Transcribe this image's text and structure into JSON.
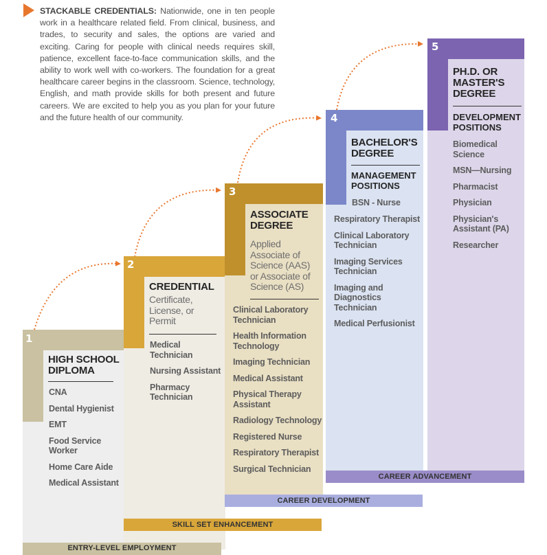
{
  "intro": {
    "heading": "STACKABLE CREDENTIALS:",
    "body": "Nationwide, one in ten people work in a healthcare related field. From clinical, business, and trades, to security and sales, the options are varied and exciting. Caring for people with clinical needs requires skill, patience, excellent face-to-face communication skills, and the ability to work well with co-workers. The foundation for a great healthcare career begins in the classroom. Science, technology, English, and math provide skills for both present and future careers. We are excited to help you as you plan for your future and the future health of our community."
  },
  "colors": {
    "step1": "#c9c1a1",
    "step2": "#d9a63a",
    "step3": "#c0902c",
    "step4": "#7b87c9",
    "step5": "#7c64b0",
    "arrow": "#e8772e"
  },
  "steps": [
    {
      "number": "1",
      "title": "HIGH SCHOOL DIPLOMA",
      "items": [
        "CNA",
        "Dental Hygienist",
        "EMT",
        "Food Service Worker",
        "Home Care Aide",
        "Medical Assistant"
      ],
      "band": "ENTRY-LEVEL EMPLOYMENT"
    },
    {
      "number": "2",
      "title": "CREDENTIAL",
      "subtitle": "Certificate, License, or Permit",
      "items": [
        "Medical Technician",
        "Nursing Assistant",
        "Pharmacy Technician"
      ],
      "band": "SKILL SET ENHANCEMENT"
    },
    {
      "number": "3",
      "title": "ASSOCIATE DEGREE",
      "subtitle": "Applied Associate of Science (AAS) or Associate of Science (AS)",
      "items": [
        "Clinical Laboratory Technician",
        "Health Information Technology",
        "Imaging Technician",
        "Medical Assistant",
        "Physical Therapy Assistant",
        "Radiology Technology",
        "Registered Nurse",
        "Respiratory Therapist",
        "Surgical Technician"
      ],
      "band": "CAREER DEVELOPMENT"
    },
    {
      "number": "4",
      "title": "BACHELOR'S DEGREE",
      "subheading": "MANAGEMENT POSITIONS",
      "lead_item": "BSN - Nurse",
      "items": [
        "Respiratory Therapist",
        "Clinical Laboratory Technician",
        "Imaging Services Technician",
        "Imaging and Diagnostics Technician",
        "Medical Perfusionist"
      ],
      "band": "CAREER ADVANCEMENT"
    },
    {
      "number": "5",
      "title": "PH.D. OR MASTER'S DEGREE",
      "subheading": "DEVELOPMENT POSITIONS",
      "items": [
        "Biomedical Science",
        "MSN—Nursing",
        "Pharmacist",
        "Physician",
        "Physician's Assistant (PA)",
        "Researcher"
      ]
    }
  ]
}
